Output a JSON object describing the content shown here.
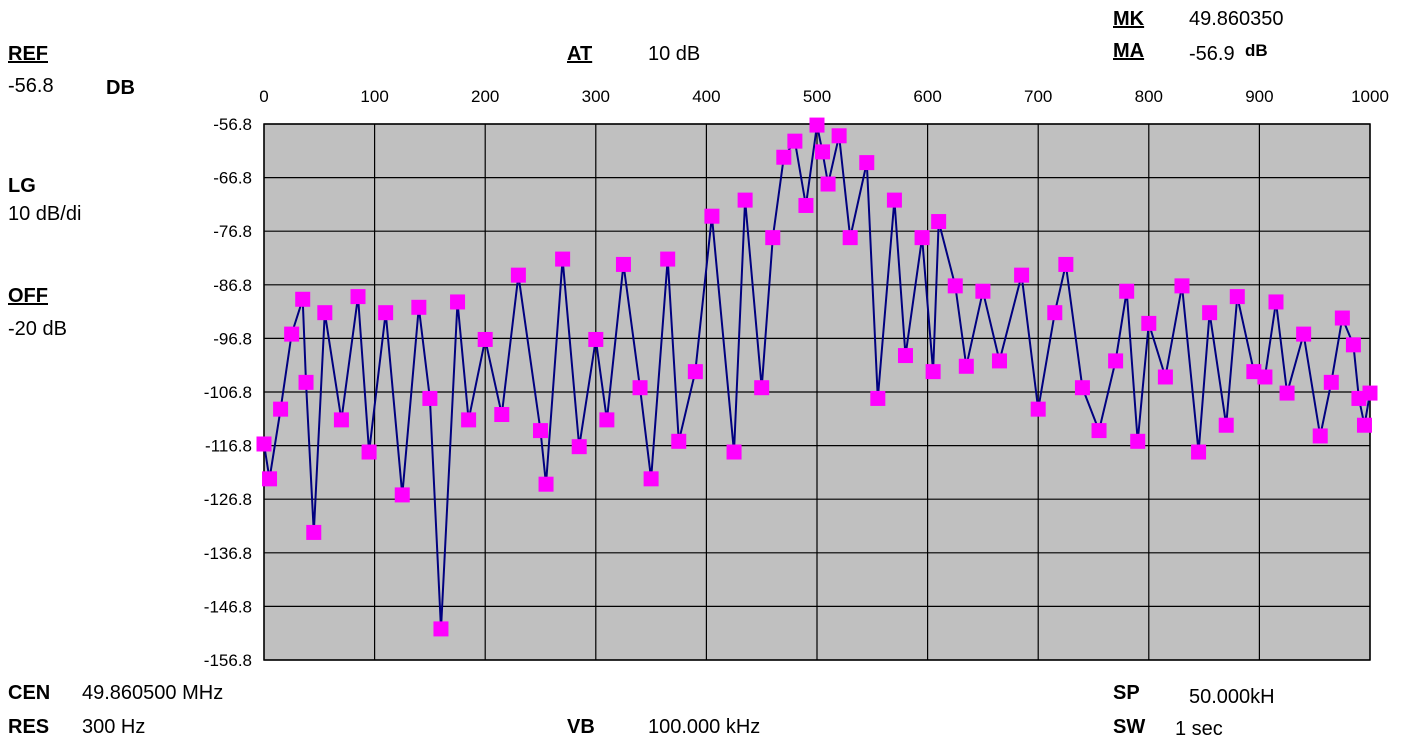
{
  "header": {
    "ref_label": "REF",
    "ref_value": "-56.8",
    "ref_unit": "DB",
    "at_label": "AT",
    "at_value": "10 dB",
    "mk_label": "MK",
    "mk_value": "49.860350",
    "ma_label": "MA",
    "ma_value": "-56.9",
    "ma_unit": "dB"
  },
  "side": {
    "lg_label": "LG",
    "lg_value": "10 dB/di",
    "off_label": "OFF",
    "off_value": "-20 dB"
  },
  "footer": {
    "cen_label": "CEN",
    "cen_value": "49.860500 MHz",
    "res_label": "RES",
    "res_value": "300 Hz",
    "vb_label": "VB",
    "vb_value": "100.000 kHz",
    "sp_label": "SP",
    "sp_value": "50.000kH",
    "sw_label": "SW",
    "sw_value": "1 sec"
  },
  "colors": {
    "plot_bg": "#c0c0c0",
    "grid": "#000000",
    "line": "#000080",
    "marker": "#ff00ff"
  },
  "chart_data": {
    "type": "line",
    "xlim": [
      0,
      1000
    ],
    "ylim": [
      -156.8,
      -56.8
    ],
    "x_ticks": [
      0,
      100,
      200,
      300,
      400,
      500,
      600,
      700,
      800,
      900,
      1000
    ],
    "y_ticks": [
      -56.8,
      -66.8,
      -76.8,
      -86.8,
      -96.8,
      -106.8,
      -116.8,
      -126.8,
      -136.8,
      -146.8,
      -156.8
    ],
    "y_tick_labels": [
      "-56.8",
      "-66.8",
      "-76.8",
      "-86.8",
      "-96.8",
      "-106.8",
      "-116.8",
      "-126.8",
      "-136.8",
      "-146.8",
      "-156.8"
    ],
    "grid": true,
    "legend": "none",
    "series": [
      {
        "x": [
          0,
          5,
          15,
          25,
          35,
          38,
          45,
          55,
          70,
          85,
          95,
          110,
          125,
          140,
          150,
          160,
          175,
          185,
          200,
          215,
          230,
          250,
          255,
          270,
          285,
          300,
          310,
          325,
          340,
          350,
          365,
          375,
          390,
          405,
          425,
          435,
          450,
          460,
          470,
          480,
          490,
          500,
          505,
          510,
          520,
          530,
          545,
          555,
          570,
          580,
          595,
          605,
          610,
          625,
          635,
          650,
          665,
          685,
          700,
          715,
          725,
          740,
          755,
          770,
          780,
          790,
          800,
          815,
          830,
          845,
          855,
          870,
          880,
          895,
          905,
          915,
          925,
          940,
          955,
          965,
          975,
          985,
          990,
          995,
          1000
        ],
        "y": [
          -116.5,
          -123,
          -110,
          -96,
          -89.5,
          -105,
          -133,
          -92,
          -112,
          -89,
          -118,
          -92,
          -126,
          -91,
          -108,
          -151,
          -90,
          -112,
          -97,
          -111,
          -85,
          -114,
          -124,
          -82,
          -117,
          -97,
          -112,
          -83,
          -106,
          -123,
          -82,
          -116,
          -103,
          -74,
          -118,
          -71,
          -106,
          -78,
          -63,
          -60,
          -72,
          -57,
          -62,
          -68,
          -59,
          -78,
          -64,
          -108,
          -71,
          -100,
          -78,
          -103,
          -75,
          -87,
          -102,
          -88,
          -101,
          -85,
          -110,
          -92,
          -83,
          -106,
          -114,
          -101,
          -88,
          -116,
          -94,
          -104,
          -87,
          -118,
          -92,
          -113,
          -89,
          -103,
          -104,
          -90,
          -107,
          -96,
          -115,
          -105,
          -93,
          -98,
          -108,
          -113,
          -107
        ]
      }
    ]
  }
}
